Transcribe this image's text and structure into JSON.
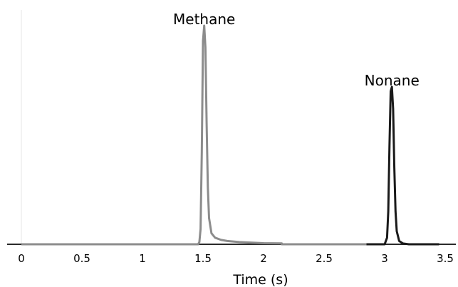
{
  "chart_data": {
    "type": "line",
    "title": "",
    "xlabel": "Time (s)",
    "ylabel": "",
    "xlim": [
      0,
      3.5
    ],
    "ylim": [
      0,
      1
    ],
    "x_ticks": [
      "0",
      "0.5",
      "1",
      "1.5",
      "2",
      "2.5",
      "3",
      "3.5"
    ],
    "grid": false,
    "legend": "none",
    "annotations": [
      {
        "text": "Methane",
        "x": 1.51,
        "y": 1.0
      },
      {
        "text": "Nonane",
        "x": 3.06,
        "y": 0.72
      }
    ],
    "series": [
      {
        "color": "#8c8c8c",
        "x": [
          0,
          1.46,
          1.47,
          1.48,
          1.49,
          1.5,
          1.51,
          1.52,
          1.53,
          1.54,
          1.55,
          1.57,
          1.6,
          1.65,
          1.7,
          1.8,
          2.0,
          2.15,
          2.15,
          2.85
        ],
        "y": [
          0,
          0,
          0.01,
          0.07,
          0.42,
          0.93,
          1.0,
          0.9,
          0.55,
          0.26,
          0.12,
          0.05,
          0.03,
          0.02,
          0.015,
          0.01,
          0.005,
          0.004,
          0,
          0
        ]
      },
      {
        "color": "#1a1a1a",
        "x": [
          2.85,
          3.0,
          3.02,
          3.03,
          3.04,
          3.05,
          3.06,
          3.07,
          3.08,
          3.09,
          3.1,
          3.12,
          3.15,
          3.2,
          3.45
        ],
        "y": [
          0,
          0,
          0.03,
          0.15,
          0.45,
          0.7,
          0.72,
          0.62,
          0.35,
          0.15,
          0.06,
          0.015,
          0.004,
          0,
          0
        ]
      }
    ]
  }
}
